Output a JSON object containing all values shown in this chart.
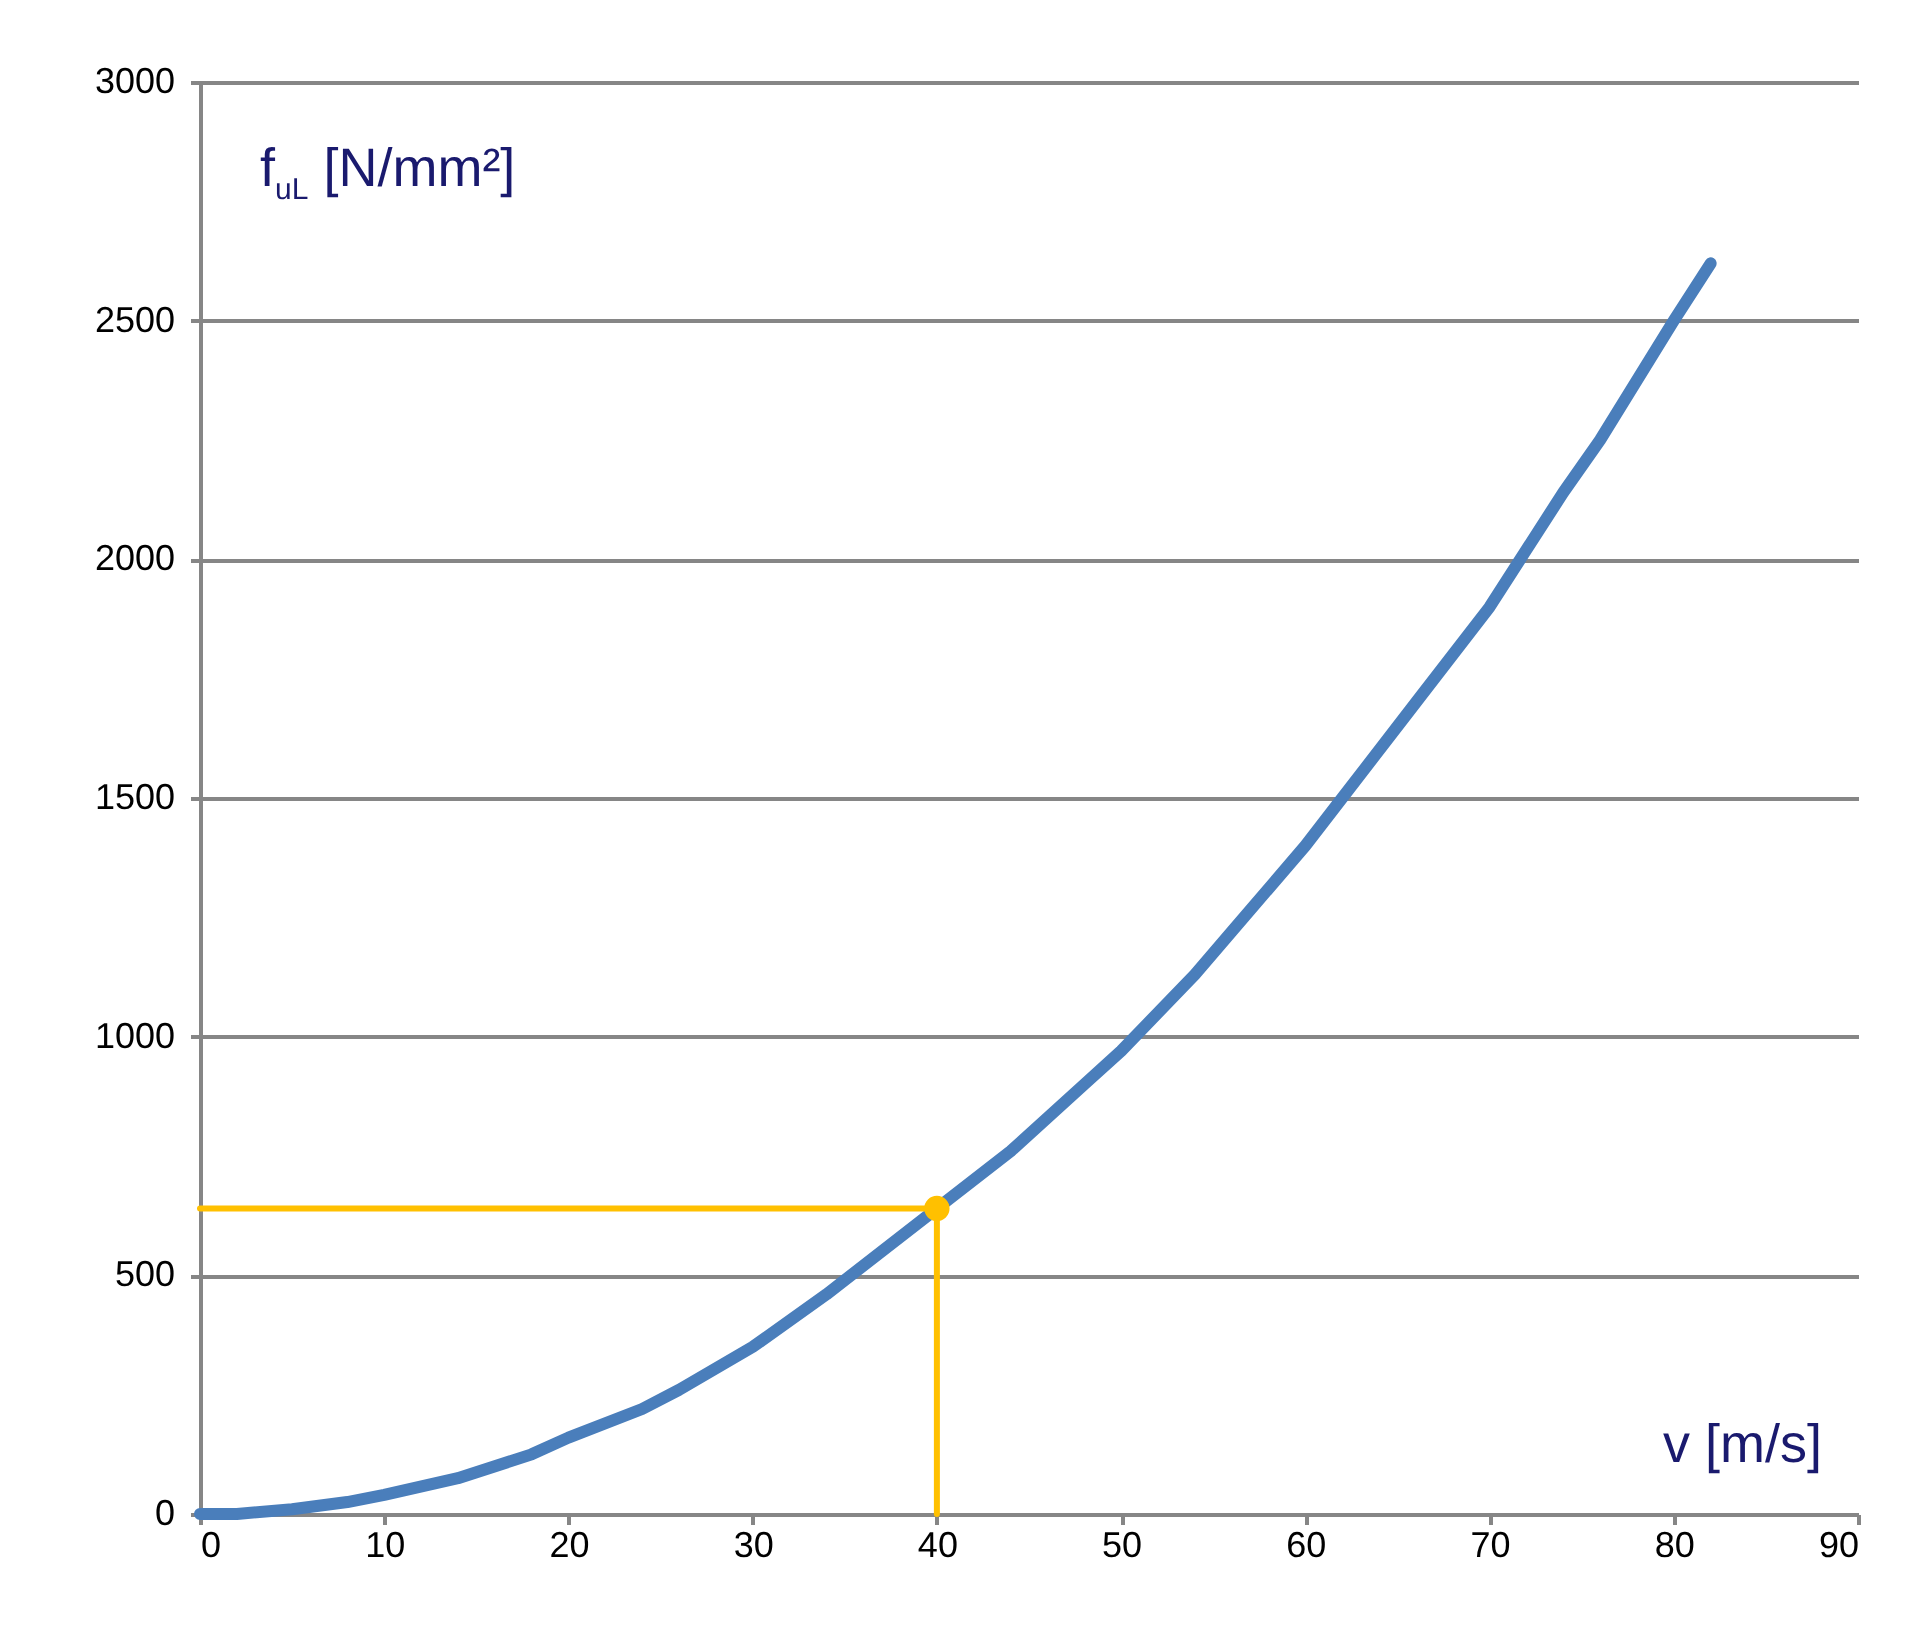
{
  "chart_data": {
    "type": "line",
    "xlabel": "v [m/s]",
    "ylabel": "f$_{uL}$ [N/mm²]",
    "xlim": [
      0,
      90
    ],
    "xticks": [
      0,
      10,
      20,
      30,
      40,
      50,
      60,
      70,
      80,
      90
    ],
    "ylim": [
      0,
      3000
    ],
    "yticks": [
      0,
      500,
      1000,
      1500,
      2000,
      2500,
      3000
    ],
    "grid": "y",
    "series": [
      {
        "color": "#4a7ebb",
        "x": [
          0,
          2,
          5,
          8,
          10,
          14,
          18,
          20,
          24,
          26,
          30,
          34,
          40,
          44,
          48,
          50,
          54,
          56,
          60,
          62,
          66,
          70,
          74,
          76,
          80,
          82
        ],
        "values": [
          0,
          0,
          10,
          25,
          40,
          75,
          125,
          160,
          220,
          260,
          350,
          460,
          640,
          760,
          900,
          970,
          1130,
          1220,
          1400,
          1500,
          1700,
          1900,
          2140,
          2250,
          2500,
          2620
        ]
      },
      {
        "type": "line",
        "color": "#ffc000",
        "x": [
          0,
          40,
          40
        ],
        "values": [
          640,
          640,
          0
        ]
      },
      {
        "type": "scatter",
        "color": "#ffc000",
        "x": [
          40
        ],
        "values": [
          640
        ]
      }
    ]
  }
}
